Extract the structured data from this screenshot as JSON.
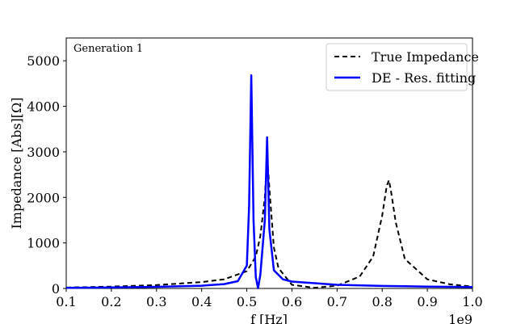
{
  "chart_data": {
    "type": "line",
    "title": "",
    "annotation": "Generation 1",
    "xlabel": "f [Hz]",
    "ylabel": "Impedance [Abs][Ω]",
    "x_multiplier": "1e9",
    "xlim": [
      0.1,
      1.0
    ],
    "ylim": [
      0,
      5500
    ],
    "xticks": [
      "0.1",
      "0.2",
      "0.3",
      "0.4",
      "0.5",
      "0.6",
      "0.7",
      "0.8",
      "0.9",
      "1.0"
    ],
    "yticks": [
      "0",
      "1000",
      "2000",
      "3000",
      "4000",
      "5000"
    ],
    "legend_position": "top-right",
    "grid": false,
    "series": [
      {
        "name": "True Impedance",
        "style": "dashed",
        "color": "#000000",
        "x": [
          0.1,
          0.2,
          0.3,
          0.4,
          0.45,
          0.5,
          0.52,
          0.53,
          0.54,
          0.545,
          0.55,
          0.56,
          0.57,
          0.6,
          0.65,
          0.7,
          0.75,
          0.78,
          0.8,
          0.81,
          0.815,
          0.82,
          0.83,
          0.85,
          0.9,
          0.95,
          1.0
        ],
        "y": [
          20,
          40,
          75,
          140,
          200,
          380,
          700,
          1150,
          2000,
          2950,
          2200,
          900,
          450,
          80,
          15,
          60,
          260,
          700,
          1600,
          2250,
          2380,
          2100,
          1450,
          650,
          200,
          90,
          40
        ]
      },
      {
        "name": "DE - Res. fitting",
        "style": "solid",
        "color": "#0000ff",
        "x": [
          0.1,
          0.2,
          0.3,
          0.4,
          0.45,
          0.48,
          0.5,
          0.505,
          0.51,
          0.515,
          0.52,
          0.525,
          0.53,
          0.54,
          0.545,
          0.55,
          0.56,
          0.58,
          0.6,
          0.7,
          0.8,
          0.9,
          1.0
        ],
        "y": [
          15,
          22,
          35,
          60,
          95,
          160,
          500,
          1800,
          4680,
          1500,
          250,
          5,
          300,
          1500,
          3320,
          1300,
          400,
          200,
          150,
          80,
          55,
          40,
          30
        ]
      }
    ]
  }
}
